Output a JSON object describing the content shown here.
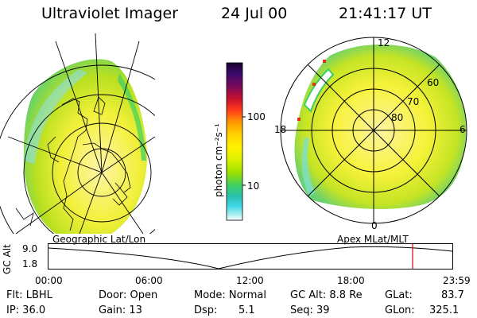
{
  "header": {
    "title": "Ultraviolet Imager",
    "date": "24 Jul 00",
    "time": "21:41:17 UT"
  },
  "colorbar": {
    "unit_label": "photon cm⁻²s⁻¹",
    "tick_100": "100",
    "tick_10": "10",
    "colors": [
      "#1a0030",
      "#3a0a6a",
      "#7a0a5a",
      "#c8102e",
      "#ff3b1a",
      "#ff9a00",
      "#ffd400",
      "#fff200",
      "#d9f000",
      "#9be000",
      "#3cd064",
      "#2cc0b0",
      "#40d8e8",
      "#a0ecf0",
      "#ffffff"
    ]
  },
  "left_map": {
    "projection_label": "Geographic Lat/Lon"
  },
  "right_map": {
    "projection_label": "Apex MLat/MLT",
    "mlt_labels": {
      "top": "12",
      "left": "18",
      "right": "6",
      "bottom": "0"
    },
    "lat_labels": {
      "l60": "60",
      "l70": "70",
      "l80": "80"
    }
  },
  "altitude_plot": {
    "axis_label": "GC Alt",
    "y_top": "9.0",
    "y_bottom": "1.8",
    "x_ticks": [
      "00:00",
      "06:00",
      "12:00",
      "18:00",
      "23:59"
    ]
  },
  "footer": {
    "flt": "Flt: LBHL",
    "ip": "IP: 36.0",
    "door": "Door: Open",
    "gain": "Gain: 13",
    "mode": "Mode: Normal",
    "dsp_label": "Dsp:",
    "dsp_value": "5.1",
    "gc_alt": "GC Alt: 8.8 Re",
    "seq": "Seq: 39",
    "glat_label": "GLat:",
    "glat_value": "83.7",
    "glon_label": "GLon:",
    "glon_value": "325.1"
  }
}
